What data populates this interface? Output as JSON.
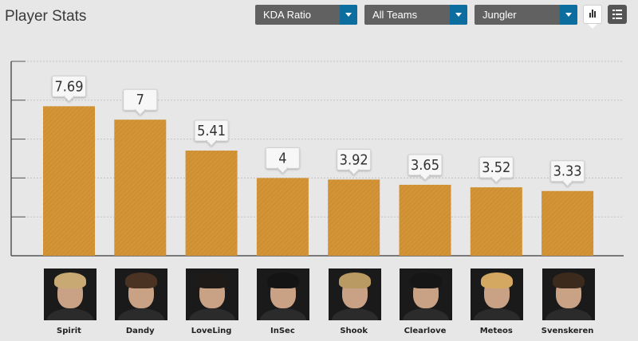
{
  "header": {
    "title": "Player Stats",
    "filters": [
      "KDA Ratio",
      "All Teams",
      "Jungler"
    ]
  },
  "colors": {
    "bar": "#d29436",
    "accent": "#0c6d9f"
  },
  "chart_data": {
    "type": "bar",
    "categories": [
      "Spirit",
      "Dandy",
      "LoveLing",
      "InSec",
      "Shook",
      "Clearlove",
      "Meteos",
      "Svenskeren"
    ],
    "values": [
      7.69,
      7,
      5.41,
      4,
      3.92,
      3.65,
      3.52,
      3.33
    ],
    "value_labels": [
      "7.69",
      "7",
      "5.41",
      "4",
      "3.92",
      "3.65",
      "3.52",
      "3.33"
    ],
    "ylim": [
      0,
      10
    ],
    "grid": true,
    "legend": "none"
  }
}
